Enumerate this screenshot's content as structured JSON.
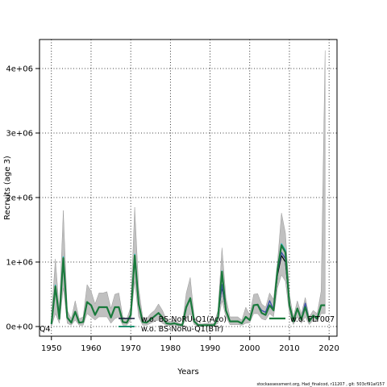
{
  "chart_data": {
    "type": "line",
    "title": "",
    "xlabel": "Years",
    "ylabel": "Recruits (age 3)",
    "xlim": [
      1947,
      2022
    ],
    "ylim": [
      -150000,
      4450000
    ],
    "x_ticks": [
      1950,
      1960,
      1970,
      1980,
      1990,
      2000,
      2010,
      2020
    ],
    "y_ticks": [
      0,
      1000000,
      2000000,
      3000000,
      4000000
    ],
    "y_tick_labels": [
      "0e+00",
      "1e+06",
      "2e+06",
      "3e+06",
      "4e+06"
    ],
    "grid": true,
    "legend_position": "bottom",
    "legend_entries": [
      "Q4",
      "w.o. BS-NoRU-Q1(Aco)",
      "w.o. BS-NoRu-Q1(BTr)",
      "w.o. FLT007"
    ],
    "band": {
      "color": "#c0c0c0",
      "years": [
        1950,
        1951,
        1952,
        1953,
        1954,
        1955,
        1956,
        1957,
        1958,
        1959,
        1960,
        1961,
        1962,
        1963,
        1964,
        1965,
        1966,
        1967,
        1968,
        1969,
        1970,
        1971,
        1972,
        1973,
        1974,
        1975,
        1976,
        1977,
        1978,
        1979,
        1980,
        1981,
        1982,
        1983,
        1984,
        1985,
        1986,
        1987,
        1988,
        1989,
        1990,
        1991,
        1992,
        1993,
        1994,
        1995,
        1996,
        1997,
        1998,
        1999,
        2000,
        2001,
        2002,
        2003,
        2004,
        2005,
        2006,
        2007,
        2008,
        2009,
        2010,
        2011,
        2012,
        2013,
        2014,
        2015,
        2016,
        2017,
        2018,
        2019
      ],
      "upper": [
        150000,
        1050000,
        250000,
        1800000,
        250000,
        120000,
        400000,
        120000,
        150000,
        650000,
        550000,
        350000,
        520000,
        520000,
        540000,
        280000,
        500000,
        520000,
        150000,
        120000,
        300000,
        1850000,
        600000,
        150000,
        120000,
        200000,
        250000,
        350000,
        250000,
        100000,
        80000,
        100000,
        60000,
        40000,
        520000,
        760000,
        150000,
        40000,
        40000,
        50000,
        50000,
        50000,
        250000,
        1220000,
        450000,
        150000,
        150000,
        150000,
        100000,
        300000,
        180000,
        500000,
        510000,
        350000,
        300000,
        520000,
        420000,
        1000000,
        1760000,
        1450000,
        500000,
        150000,
        400000,
        200000,
        450000,
        150000,
        250000,
        200000,
        550000,
        4280000
      ],
      "lower": [
        0,
        200000,
        50000,
        600000,
        50000,
        20000,
        100000,
        20000,
        20000,
        200000,
        150000,
        100000,
        150000,
        150000,
        150000,
        50000,
        120000,
        150000,
        20000,
        20000,
        100000,
        700000,
        150000,
        20000,
        20000,
        50000,
        80000,
        100000,
        50000,
        20000,
        10000,
        20000,
        10000,
        10000,
        120000,
        200000,
        30000,
        10000,
        10000,
        10000,
        10000,
        10000,
        50000,
        400000,
        150000,
        30000,
        30000,
        30000,
        20000,
        50000,
        60000,
        200000,
        200000,
        120000,
        100000,
        200000,
        150000,
        600000,
        800000,
        700000,
        200000,
        30000,
        150000,
        50000,
        150000,
        30000,
        100000,
        80000,
        200000,
        200000
      ]
    },
    "series": [
      {
        "name": "Q4",
        "color": "#000000",
        "x": [
          1950,
          1951,
          1952,
          1953,
          1954,
          1955,
          1956,
          1957,
          1958,
          1959,
          1960,
          1961,
          1962,
          1963,
          1964,
          1965,
          1966,
          1967,
          1968,
          1969,
          1970,
          1971,
          1972,
          1973,
          1974,
          1975,
          1976,
          1977,
          1978,
          1979,
          1980,
          1981,
          1982,
          1983,
          1984,
          1985,
          1986,
          1987,
          1988,
          1989,
          1990,
          1991,
          1992,
          1993,
          1994,
          1995,
          1996,
          1997,
          1998,
          1999,
          2000,
          2001,
          2002,
          2003,
          2004,
          2005,
          2006,
          2007,
          2008,
          2009,
          2010,
          2011,
          2012,
          2013,
          2014,
          2015,
          2016,
          2017,
          2018,
          2019
        ],
        "y": [
          40000,
          600000,
          120000,
          1050000,
          140000,
          60000,
          230000,
          60000,
          70000,
          380000,
          330000,
          180000,
          300000,
          300000,
          300000,
          140000,
          300000,
          300000,
          70000,
          60000,
          180000,
          1080000,
          350000,
          70000,
          60000,
          110000,
          160000,
          210000,
          140000,
          50000,
          40000,
          50000,
          30000,
          20000,
          300000,
          440000,
          80000,
          20000,
          20000,
          20000,
          20000,
          20000,
          140000,
          620000,
          250000,
          80000,
          80000,
          80000,
          50000,
          150000,
          100000,
          330000,
          340000,
          210000,
          180000,
          330000,
          250000,
          800000,
          1100000,
          1000000,
          330000,
          80000,
          280000,
          110000,
          300000,
          80000,
          170000,
          120000,
          330000,
          330000
        ]
      },
      {
        "name": "w.o. BS-NoRU-Q1(Aco)",
        "color": "#3b4fa8",
        "x": [
          1950,
          1951,
          1952,
          1953,
          1954,
          1955,
          1956,
          1957,
          1958,
          1959,
          1960,
          1961,
          1962,
          1963,
          1964,
          1965,
          1966,
          1967,
          1968,
          1969,
          1970,
          1971,
          1972,
          1973,
          1974,
          1975,
          1976,
          1977,
          1978,
          1979,
          1980,
          1981,
          1982,
          1983,
          1984,
          1985,
          1986,
          1987,
          1988,
          1989,
          1990,
          1991,
          1992,
          1993,
          1994,
          1995,
          1996,
          1997,
          1998,
          1999,
          2000,
          2001,
          2002,
          2003,
          2004,
          2005,
          2006,
          2007,
          2008,
          2009,
          2010,
          2011,
          2012,
          2013,
          2014,
          2015,
          2016,
          2017,
          2018,
          2019
        ],
        "y": [
          40000,
          610000,
          120000,
          1050000,
          140000,
          60000,
          230000,
          60000,
          70000,
          380000,
          330000,
          180000,
          300000,
          300000,
          300000,
          140000,
          300000,
          300000,
          70000,
          60000,
          180000,
          1090000,
          350000,
          70000,
          60000,
          110000,
          160000,
          210000,
          140000,
          50000,
          40000,
          50000,
          30000,
          20000,
          300000,
          440000,
          80000,
          20000,
          20000,
          20000,
          20000,
          20000,
          140000,
          650000,
          250000,
          80000,
          80000,
          80000,
          50000,
          150000,
          100000,
          330000,
          340000,
          250000,
          220000,
          400000,
          260000,
          850000,
          1150000,
          1050000,
          330000,
          80000,
          280000,
          110000,
          360000,
          80000,
          170000,
          120000,
          330000,
          330000
        ]
      },
      {
        "name": "w.o. BS-NoRu-Q1(BTr)",
        "color": "#27b9c4",
        "x": [
          1950,
          1951,
          1952,
          1953,
          1954,
          1955,
          1956,
          1957,
          1958,
          1959,
          1960,
          1961,
          1962,
          1963,
          1964,
          1965,
          1966,
          1967,
          1968,
          1969,
          1970,
          1971,
          1972,
          1973,
          1974,
          1975,
          1976,
          1977,
          1978,
          1979,
          1980,
          1981,
          1982,
          1983,
          1984,
          1985,
          1986,
          1987,
          1988,
          1989,
          1990,
          1991,
          1992,
          1993,
          1994,
          1995,
          1996,
          1997,
          1998,
          1999,
          2000,
          2001,
          2002,
          2003,
          2004,
          2005,
          2006,
          2007,
          2008,
          2009,
          2010,
          2011,
          2012,
          2013,
          2014,
          2015,
          2016,
          2017,
          2018,
          2019
        ],
        "y": [
          40000,
          640000,
          120000,
          1080000,
          140000,
          60000,
          230000,
          60000,
          70000,
          380000,
          330000,
          180000,
          300000,
          300000,
          300000,
          140000,
          300000,
          300000,
          70000,
          60000,
          180000,
          1120000,
          350000,
          70000,
          60000,
          110000,
          160000,
          210000,
          140000,
          50000,
          40000,
          50000,
          30000,
          20000,
          300000,
          440000,
          80000,
          20000,
          20000,
          20000,
          20000,
          20000,
          140000,
          860000,
          250000,
          80000,
          80000,
          80000,
          50000,
          150000,
          100000,
          330000,
          340000,
          210000,
          180000,
          330000,
          250000,
          900000,
          1280000,
          1180000,
          330000,
          80000,
          280000,
          110000,
          300000,
          80000,
          170000,
          120000,
          330000,
          330000
        ]
      },
      {
        "name": "w.o. FLT007",
        "color": "#1a7a3c",
        "x": [
          1950,
          1951,
          1952,
          1953,
          1954,
          1955,
          1956,
          1957,
          1958,
          1959,
          1960,
          1961,
          1962,
          1963,
          1964,
          1965,
          1966,
          1967,
          1968,
          1969,
          1970,
          1971,
          1972,
          1973,
          1974,
          1975,
          1976,
          1977,
          1978,
          1979,
          1980,
          1981,
          1982,
          1983,
          1984,
          1985,
          1986,
          1987,
          1988,
          1989,
          1990,
          1991,
          1992,
          1993,
          1994,
          1995,
          1996,
          1997,
          1998,
          1999,
          2000,
          2001,
          2002,
          2003,
          2004,
          2005,
          2006,
          2007,
          2008,
          2009,
          2010,
          2011,
          2012,
          2013,
          2014,
          2015,
          2016,
          2017,
          2018,
          2019
        ],
        "y": [
          40000,
          620000,
          120000,
          1060000,
          140000,
          60000,
          230000,
          60000,
          70000,
          380000,
          330000,
          180000,
          300000,
          300000,
          300000,
          140000,
          300000,
          300000,
          70000,
          60000,
          180000,
          1100000,
          350000,
          70000,
          60000,
          110000,
          160000,
          210000,
          140000,
          50000,
          40000,
          50000,
          30000,
          20000,
          300000,
          440000,
          80000,
          20000,
          20000,
          20000,
          20000,
          20000,
          140000,
          850000,
          250000,
          80000,
          80000,
          80000,
          50000,
          150000,
          100000,
          330000,
          340000,
          210000,
          180000,
          330000,
          250000,
          880000,
          1260000,
          1150000,
          330000,
          80000,
          280000,
          110000,
          300000,
          80000,
          170000,
          120000,
          330000,
          330000
        ]
      }
    ]
  },
  "footnote": "stockassessment.org, Had_finalcod, r11207 , git: 503cf91af157"
}
